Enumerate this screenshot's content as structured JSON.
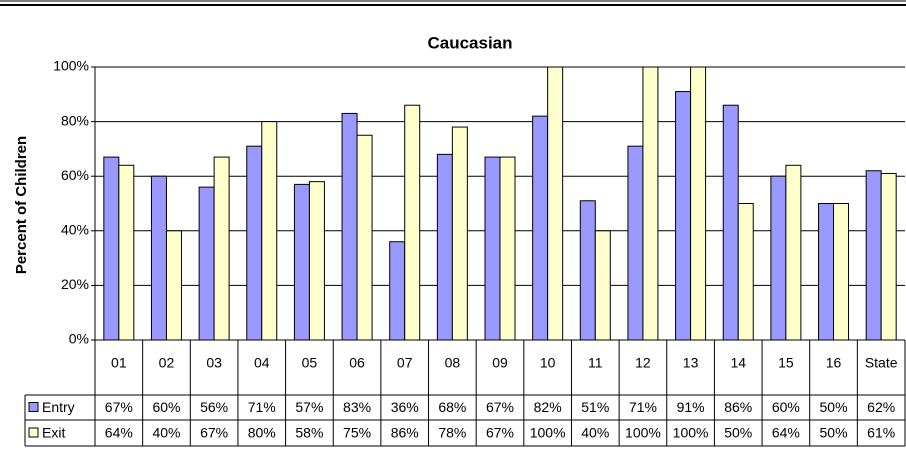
{
  "chart_data": {
    "type": "bar",
    "title": "Caucasian",
    "y_label": "Percent of Children",
    "categories": [
      "01",
      "02",
      "03",
      "04",
      "05",
      "06",
      "07",
      "08",
      "09",
      "10",
      "11",
      "12",
      "13",
      "14",
      "15",
      "16",
      "State"
    ],
    "series": [
      {
        "name": "Entry",
        "color": "#9999ff",
        "values": [
          67,
          60,
          56,
          71,
          57,
          83,
          36,
          68,
          67,
          82,
          51,
          71,
          91,
          86,
          60,
          50,
          62
        ],
        "value_labels": [
          "67%",
          "60%",
          "56%",
          "71%",
          "57%",
          "83%",
          "36%",
          "68%",
          "67%",
          "82%",
          "51%",
          "71%",
          "91%",
          "86%",
          "60%",
          "50%",
          "62%"
        ]
      },
      {
        "name": "Exit",
        "color": "#ffffcc",
        "values": [
          64,
          40,
          67,
          80,
          58,
          75,
          86,
          78,
          67,
          100,
          40,
          100,
          100,
          50,
          64,
          50,
          61
        ],
        "value_labels": [
          "64%",
          "40%",
          "67%",
          "80%",
          "58%",
          "75%",
          "86%",
          "78%",
          "67%",
          "100%",
          "40%",
          "100%",
          "100%",
          "50%",
          "64%",
          "50%",
          "61%"
        ]
      }
    ],
    "ylim": [
      0,
      100
    ],
    "yticks": [
      {
        "value": 0,
        "label": "0%"
      },
      {
        "value": 20,
        "label": "20%"
      },
      {
        "value": 40,
        "label": "40%"
      },
      {
        "value": 60,
        "label": "60%"
      },
      {
        "value": 80,
        "label": "80%"
      },
      {
        "value": 100,
        "label": "100%"
      }
    ],
    "grid": true
  }
}
